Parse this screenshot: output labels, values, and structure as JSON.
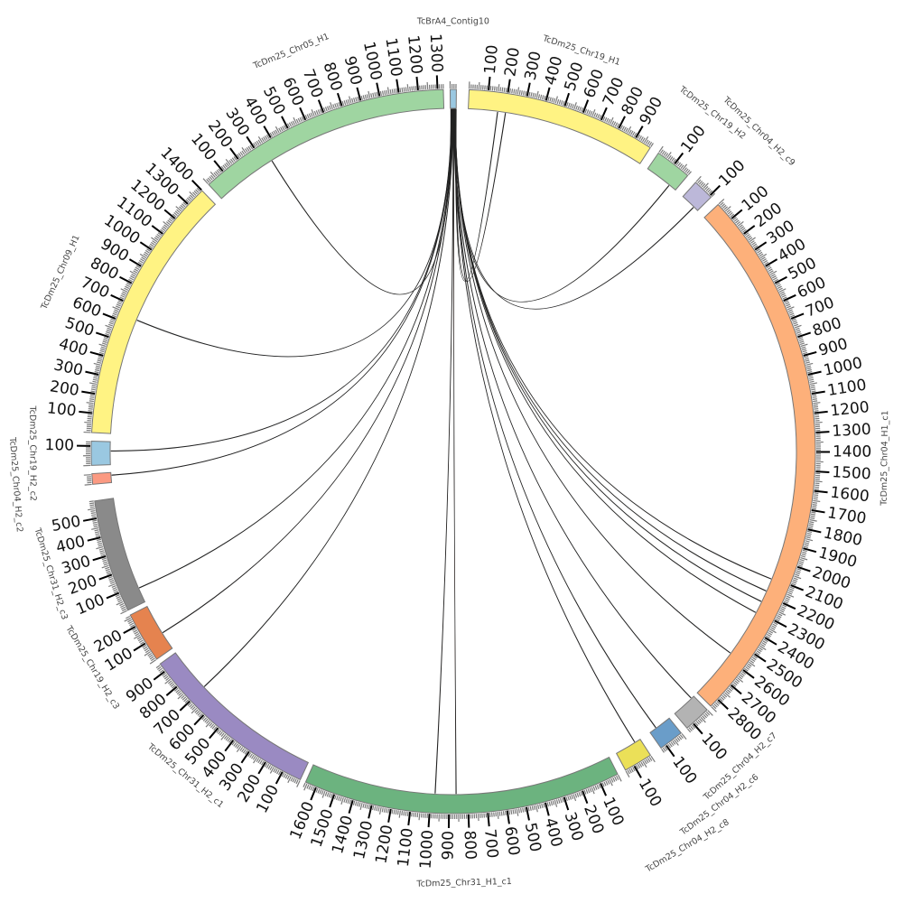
{
  "chart_data": {
    "type": "circos",
    "title": "",
    "units_per_tick": 100,
    "segments": [
      {
        "name": "TcBrA4_Contig10",
        "length": 32,
        "color": "#9ac8e1"
      },
      {
        "name": "TcDm25_Chr19_H1",
        "length": 990,
        "color": "#fff383"
      },
      {
        "name": "TcDm25_Chr19_H2",
        "length": 190,
        "color": "#9fd5a1"
      },
      {
        "name": "TcDm25_Chr04_H2_c9",
        "length": 110,
        "color": "#bcb8d9"
      },
      {
        "name": "TcDm25_Chr04_H1_c1",
        "length": 2850,
        "color": "#fdb07a"
      },
      {
        "name": "TcDm25_Chr04_H2_c7",
        "length": 140,
        "color": "#b3b3b3"
      },
      {
        "name": "TcDm25_Chr04_H2_c6",
        "length": 130,
        "color": "#6a9dc9"
      },
      {
        "name": "TcDm25_Chr04_H2_c8",
        "length": 150,
        "color": "#ebe058"
      },
      {
        "name": "TcDm25_Chr31_H1_c1",
        "length": 1660,
        "color": "#6cb37f"
      },
      {
        "name": "TcDm25_Chr31_H2_c1",
        "length": 945,
        "color": "#9a8ac2"
      },
      {
        "name": "TcDm25_Chr19_H2_c3",
        "length": 265,
        "color": "#e5834f"
      },
      {
        "name": "TcDm25_Chr31_H2_c3",
        "length": 590,
        "color": "#8a8a8a"
      },
      {
        "name": "TcDm25_Chr04_H2_c2",
        "length": 55,
        "color": "#fb9a82"
      },
      {
        "name": "TcDm25_Chr19_H2_c2",
        "length": 125,
        "color": "#9ac8e1"
      },
      {
        "name": "TcDm25_Chr09_H1",
        "length": 1400,
        "color": "#fff383"
      },
      {
        "name": "TcDm25_Chr05_H1",
        "length": 1330,
        "color": "#9fd5a1"
      }
    ],
    "links": [
      {
        "source": 0,
        "source_pos": 2,
        "target": 15,
        "target_pos": 341,
        "color": "#f2e84a"
      },
      {
        "source": 0,
        "source_pos": 4,
        "target": 14,
        "target_pos": 634,
        "color": "#4a7fb0"
      },
      {
        "source": 0,
        "source_pos": 6,
        "target": 13,
        "target_pos": 73,
        "color": "#5577aa"
      },
      {
        "source": 0,
        "source_pos": 8,
        "target": 12,
        "target_pos": 39,
        "color": "#6a5a9a"
      },
      {
        "source": 0,
        "source_pos": 10,
        "target": 11,
        "target_pos": 81,
        "color": "#3c8a4a"
      },
      {
        "source": 0,
        "source_pos": 12,
        "target": 10,
        "target_pos": 98,
        "color": "#c0502a"
      },
      {
        "source": 0,
        "source_pos": 14,
        "target": 9,
        "target_pos": 702,
        "color": "#3c8a4a"
      },
      {
        "source": 0,
        "source_pos": 15,
        "target": 8,
        "target_pos": 975,
        "color": "#c0502a"
      },
      {
        "source": 0,
        "source_pos": 17,
        "target": 8,
        "target_pos": 861,
        "color": "#a04a30"
      },
      {
        "source": 0,
        "source_pos": 18,
        "target": 7,
        "target_pos": 32,
        "color": "#4a3a8a"
      },
      {
        "source": 0,
        "source_pos": 19,
        "target": 6,
        "target_pos": 88,
        "color": "#2f6a3a"
      },
      {
        "source": 0,
        "source_pos": 20,
        "target": 5,
        "target_pos": 16,
        "color": "#4a6a8a"
      },
      {
        "source": 0,
        "source_pos": 21,
        "target": 4,
        "target_pos": 2106,
        "color": "#c0502a"
      },
      {
        "source": 0,
        "source_pos": 22,
        "target": 4,
        "target_pos": 2177,
        "color": "#8a7a20"
      },
      {
        "source": 0,
        "source_pos": 23,
        "target": 4,
        "target_pos": 2307,
        "color": "#f2e84a"
      },
      {
        "source": 0,
        "source_pos": 24,
        "target": 4,
        "target_pos": 2567,
        "color": "#4a7fb0"
      },
      {
        "source": 0,
        "source_pos": 25,
        "target": 4,
        "target_pos": 2240,
        "color": "#3c8a4a"
      },
      {
        "source": 0,
        "source_pos": 26,
        "target": 3,
        "target_pos": 81,
        "color": "#5a5aa0"
      },
      {
        "source": 0,
        "source_pos": 27,
        "target": 2,
        "target_pos": 146,
        "color": "#f2e84a"
      },
      {
        "source": 0,
        "source_pos": 28,
        "target": 1,
        "target_pos": 159,
        "color": "#5aa07a"
      },
      {
        "source": 0,
        "source_pos": 30,
        "target": 1,
        "target_pos": 202,
        "color": "#a04a30"
      }
    ]
  }
}
